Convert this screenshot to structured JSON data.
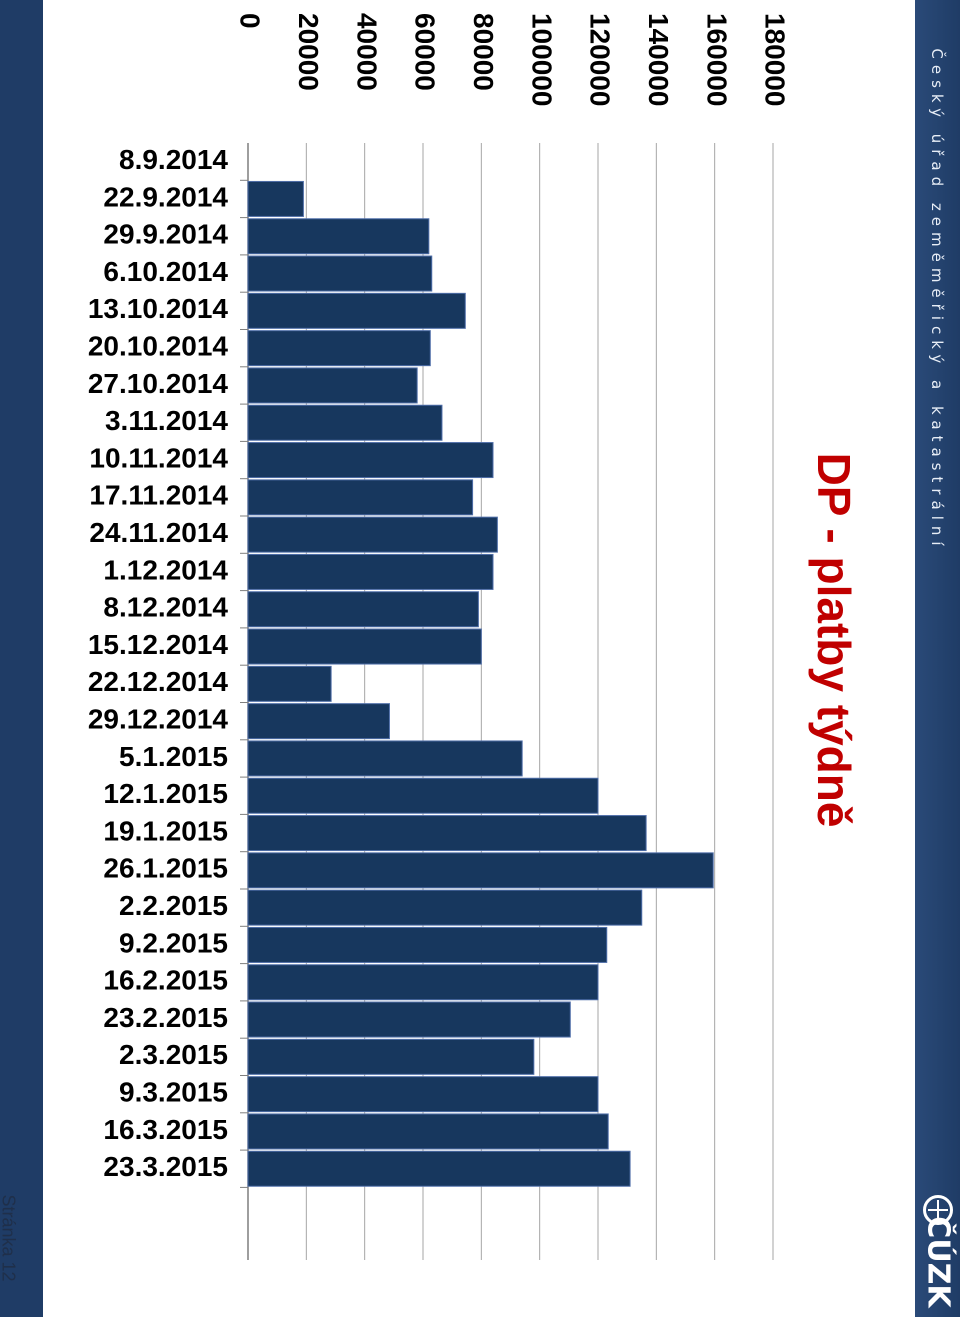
{
  "header": {
    "org_name": "Český úřad zeměměřický a katastrální",
    "logo_text": "ČÚZK"
  },
  "footer": {
    "page_label": "Stránka 12"
  },
  "colors": {
    "bar": "#17375e",
    "bar_border": "#4f6ea8",
    "title": "#c00000",
    "band": "#1f3c66",
    "grid": "#a6a6a6"
  },
  "chart_data": {
    "type": "bar",
    "orientation": "horizontal",
    "title": "DP - platby týdně",
    "xlabel": "",
    "ylabel": "",
    "xlim": [
      0,
      180000
    ],
    "ticks": [
      0,
      20000,
      40000,
      60000,
      80000,
      100000,
      120000,
      140000,
      160000,
      180000
    ],
    "grid": true,
    "legend": "none",
    "categories": [
      "8.9.2014",
      "22.9.2014",
      "29.9.2014",
      "6.10.2014",
      "13.10.2014",
      "20.10.2014",
      "27.10.2014",
      "3.11.2014",
      "10.11.2014",
      "17.11.2014",
      "24.11.2014",
      "1.12.2014",
      "8.12.2014",
      "15.12.2014",
      "22.12.2014",
      "29.12.2014",
      "5.1.2015",
      "12.1.2015",
      "19.1.2015",
      "26.1.2015",
      "2.2.2015",
      "9.2.2015",
      "16.2.2015",
      "23.2.2015",
      "2.3.2015",
      "9.3.2015",
      "16.3.2015",
      "23.3.2015"
    ],
    "values": [
      0,
      19000,
      62000,
      63000,
      74500,
      62500,
      58000,
      66500,
      84000,
      77000,
      85500,
      84000,
      79000,
      80000,
      28500,
      48500,
      94000,
      120000,
      136500,
      159500,
      135000,
      123000,
      120000,
      110500,
      98000,
      120000,
      123500,
      131000
    ]
  }
}
